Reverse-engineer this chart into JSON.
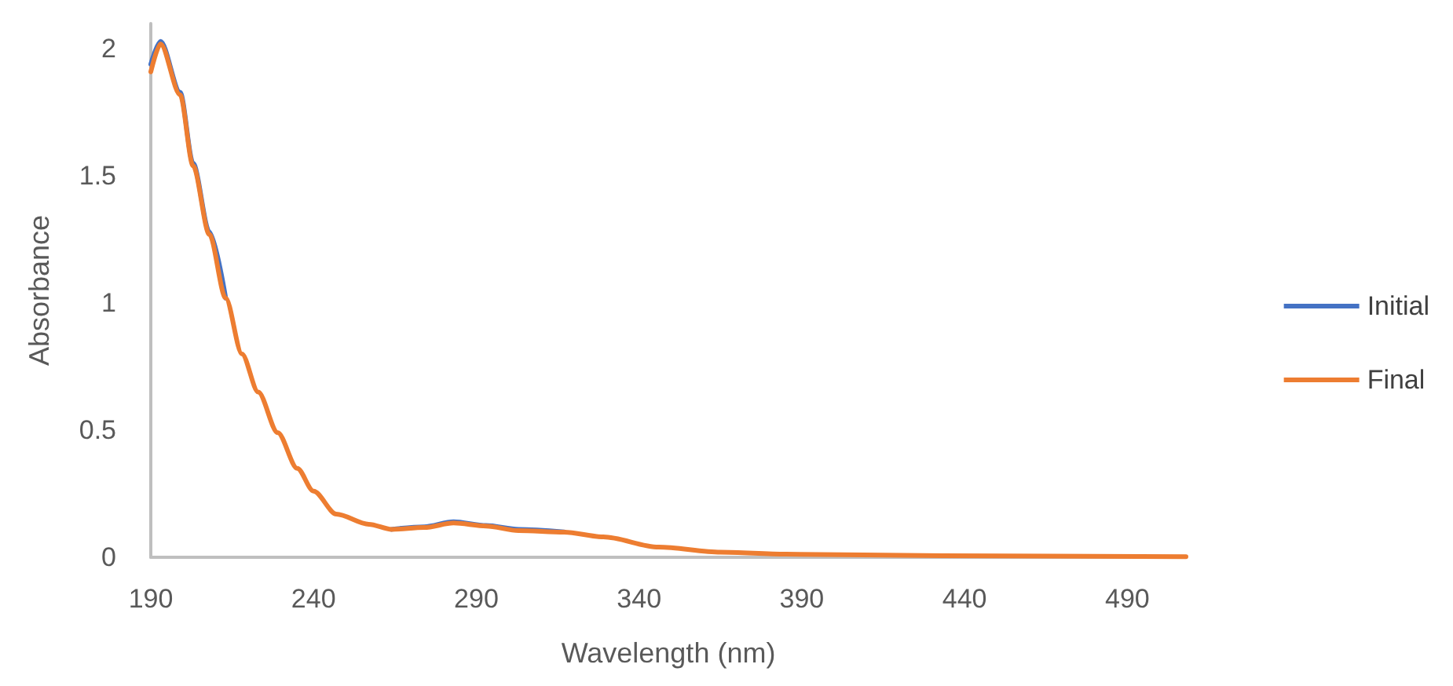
{
  "chart_data": {
    "type": "line",
    "xlabel": "Wavelength (nm)",
    "ylabel": "Absorbance",
    "x": [
      190,
      193,
      199,
      203,
      208,
      213,
      218,
      223,
      229,
      235,
      240,
      247,
      257,
      264,
      274,
      283,
      293,
      303,
      317,
      329,
      346,
      365,
      385,
      433,
      508
    ],
    "series": [
      {
        "name": "Initial",
        "color": "#4472c4",
        "values": [
          1.94,
          2.03,
          1.83,
          1.55,
          1.28,
          1.02,
          null,
          null,
          null,
          null,
          null,
          null,
          null,
          0.11,
          0.12,
          0.14,
          0.125,
          0.11,
          0.1,
          null,
          null,
          null,
          null,
          null,
          null
        ]
      },
      {
        "name": "Final",
        "color": "#ed7d31",
        "values": [
          1.91,
          2.02,
          1.82,
          1.54,
          1.27,
          1.02,
          0.8,
          0.65,
          0.49,
          0.35,
          0.26,
          0.17,
          0.13,
          0.11,
          0.117,
          0.135,
          0.123,
          0.105,
          0.099,
          0.08,
          0.04,
          0.02,
          0.012,
          0.006,
          0.002
        ]
      }
    ],
    "xlim": [
      190,
      508
    ],
    "xticks": [
      190,
      240,
      290,
      340,
      390,
      440,
      490
    ],
    "ylim": [
      0,
      2.1
    ],
    "yticks": [
      0,
      0.5,
      1,
      1.5,
      2
    ],
    "grid": false,
    "legend": "right",
    "marker": "none",
    "line_style": "solid"
  }
}
